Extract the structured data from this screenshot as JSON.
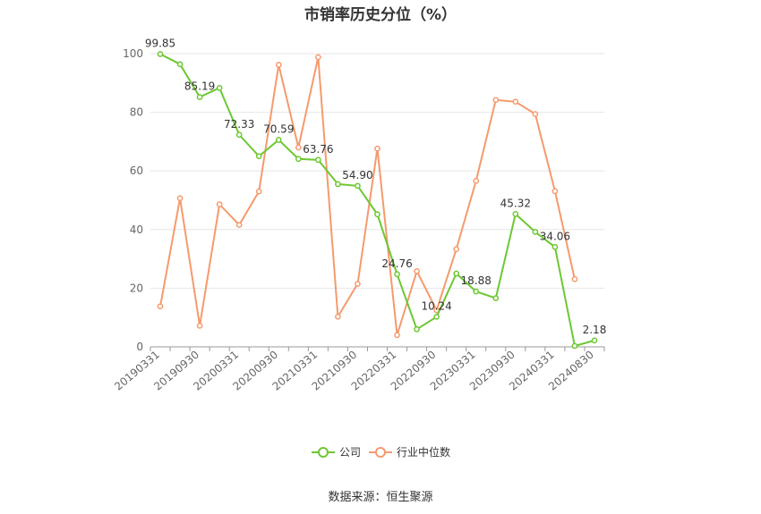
{
  "title": "市销率历史分位（%）",
  "source": "数据来源：恒生聚源",
  "legend": [
    "公司",
    "行业中位数"
  ],
  "colors": {
    "company": "#6CC832",
    "industry": "#F59A6D",
    "grid": "#e6e6e6",
    "axis": "#999999",
    "text": "#666666",
    "label": "#333333"
  },
  "chart_data": {
    "type": "line",
    "title": "市销率历史分位（%）",
    "xlabel": "",
    "ylabel": "",
    "ylim": [
      0,
      100
    ],
    "yticks": [
      0,
      20,
      40,
      60,
      80,
      100
    ],
    "grid": true,
    "legend_position": "bottom",
    "x": [
      "20190331",
      "20190630",
      "20190930",
      "20191231",
      "20200331",
      "20200630",
      "20200930",
      "20201231",
      "20210331",
      "20210630",
      "20210930",
      "20211231",
      "20220331",
      "20220630",
      "20220930",
      "20221231",
      "20230331",
      "20230630",
      "20230930",
      "20231231",
      "20240331",
      "20240630",
      "20240830"
    ],
    "x_tick_labels": [
      "20190331",
      "20190930",
      "20200331",
      "20200930",
      "20210331",
      "20210930",
      "20220331",
      "20220930",
      "20230331",
      "20230930",
      "20240331",
      "20240830"
    ],
    "series": [
      {
        "name": "公司",
        "values": [
          99.85,
          96.4,
          85.19,
          88.3,
          72.33,
          65.0,
          70.59,
          64.1,
          63.76,
          55.5,
          54.9,
          45.2,
          24.76,
          6.0,
          10.24,
          25.0,
          18.88,
          16.6,
          45.32,
          39.2,
          34.06,
          0.3,
          2.18
        ],
        "data_labels": [
          "99.85",
          "",
          "85.19",
          "",
          "72.33",
          "",
          "70.59",
          "",
          "63.76",
          "",
          "54.90",
          "",
          "24.76",
          "",
          "10.24",
          "",
          "18.88",
          "",
          "45.32",
          "",
          "34.06",
          "",
          "2.18"
        ]
      },
      {
        "name": "行业中位数",
        "values": [
          13.8,
          50.7,
          7.2,
          48.6,
          41.6,
          53.0,
          96.2,
          68.0,
          98.8,
          10.3,
          21.5,
          67.6,
          4.0,
          25.8,
          12.5,
          33.3,
          56.6,
          84.2,
          83.6,
          79.4,
          53.1,
          23.1,
          null
        ]
      }
    ]
  }
}
